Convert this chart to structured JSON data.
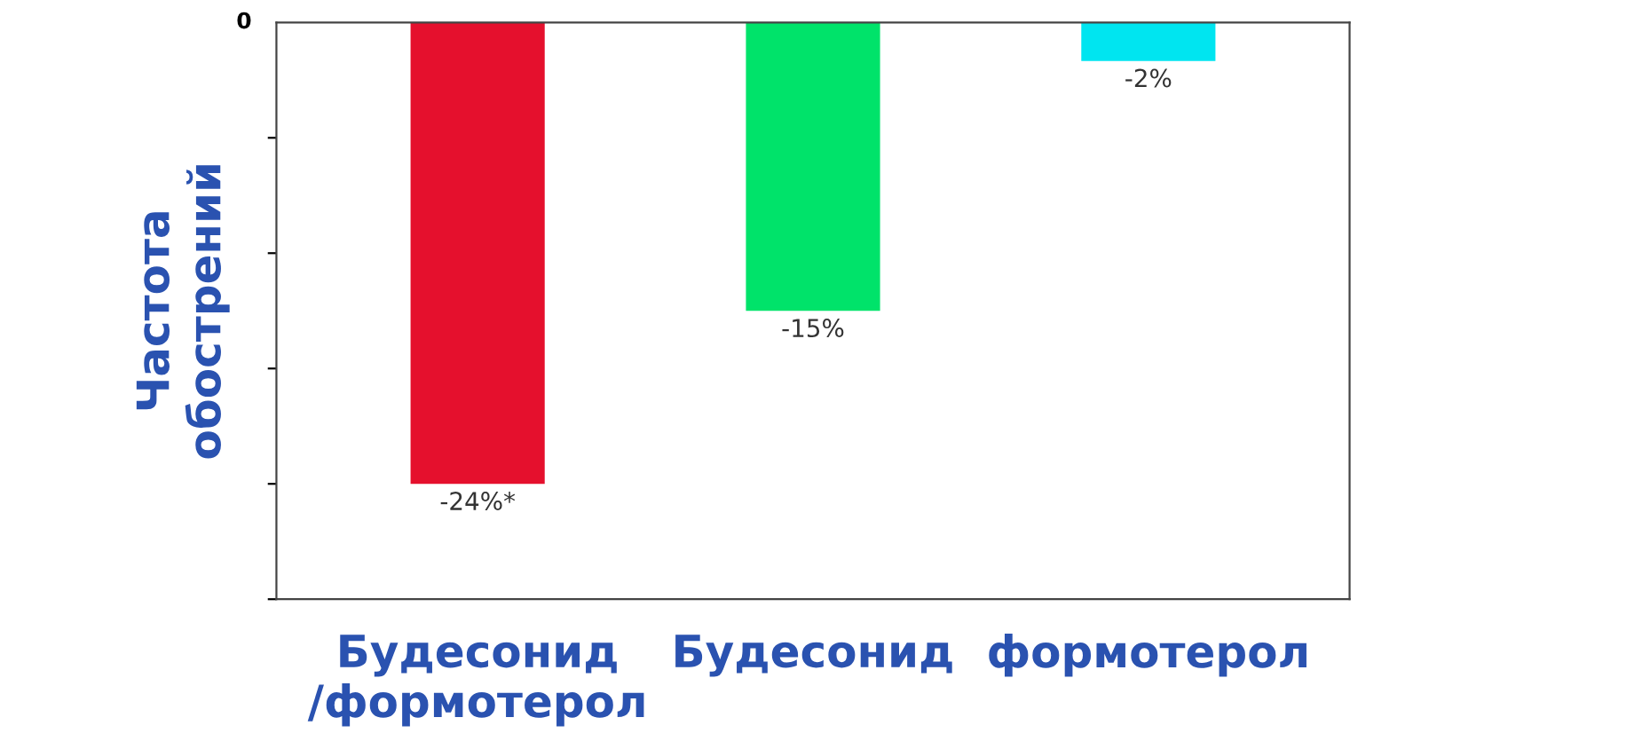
{
  "chart_data": {
    "type": "bar",
    "ylabel": "Частота\nобострений",
    "categories": [
      "Будесонид\n/формотерол",
      "Будесонид",
      "формотерол"
    ],
    "values": [
      -24,
      -15,
      -2
    ],
    "colors": [
      "#e5102d",
      "#00e36a",
      "#00e5f0"
    ],
    "value_labels": [
      "-24%*",
      "-15%",
      "-2%"
    ],
    "annotations": [
      "0"
    ],
    "grid": false,
    "legend": false
  }
}
